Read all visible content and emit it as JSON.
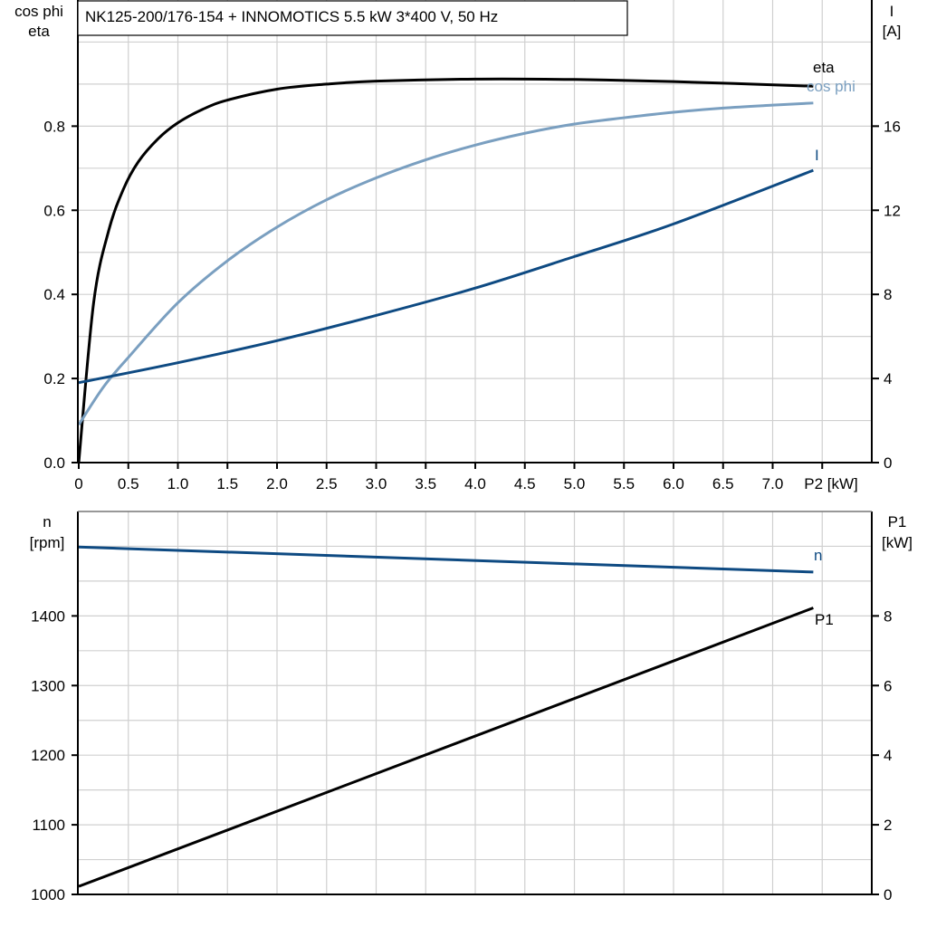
{
  "title": "NK125-200/176-154 + INNOMOTICS   5.5 kW   3*400 V, 50 Hz",
  "colors": {
    "eta": "#000000",
    "cos_phi": "#7a9fc0",
    "I": "#0e4a82",
    "n": "#0e4a82",
    "P1": "#000000",
    "grid": "#d0d0d0"
  },
  "chart_data": [
    {
      "type": "line",
      "xlabel": "P2 [kW]",
      "ylabel_left": [
        "cos phi",
        "eta"
      ],
      "ylabel_right": [
        "I",
        "[A]"
      ],
      "xlim": [
        0,
        8.0
      ],
      "ylim_left": [
        0,
        1.1
      ],
      "ylim_right": [
        0,
        22
      ],
      "x_ticks": [
        "0",
        "0.5",
        "1.0",
        "1.5",
        "2.0",
        "2.5",
        "3.0",
        "3.5",
        "4.0",
        "4.5",
        "5.0",
        "5.5",
        "6.0",
        "6.5",
        "7.0"
      ],
      "y_ticks_left": [
        "0.0",
        "0.2",
        "0.4",
        "0.6",
        "0.8"
      ],
      "y_ticks_right": [
        "0",
        "4",
        "8",
        "12",
        "16"
      ],
      "grid": true,
      "series": [
        {
          "name": "eta",
          "axis": "left",
          "x": [
            0,
            0.15,
            0.3,
            0.45,
            0.6,
            0.8,
            1.0,
            1.25,
            1.5,
            2.0,
            2.5,
            3.0,
            4.0,
            5.0,
            6.0,
            7.41
          ],
          "y": [
            0,
            0.38,
            0.55,
            0.65,
            0.715,
            0.77,
            0.808,
            0.84,
            0.862,
            0.888,
            0.9,
            0.907,
            0.912,
            0.911,
            0.906,
            0.895
          ]
        },
        {
          "name": "cos phi",
          "axis": "left",
          "x": [
            0,
            0.25,
            0.5,
            1.0,
            1.5,
            2.0,
            2.5,
            3.0,
            3.5,
            4.0,
            4.5,
            5.0,
            5.5,
            6.0,
            6.5,
            7.0,
            7.41
          ],
          "y": [
            0.09,
            0.18,
            0.25,
            0.38,
            0.48,
            0.56,
            0.625,
            0.677,
            0.72,
            0.755,
            0.783,
            0.805,
            0.82,
            0.833,
            0.843,
            0.85,
            0.855
          ]
        },
        {
          "name": "I",
          "axis": "right",
          "x": [
            0,
            1,
            2,
            3,
            4,
            5,
            6,
            7.41
          ],
          "y": [
            3.8,
            4.75,
            5.8,
            7.0,
            8.3,
            9.8,
            11.35,
            13.9
          ]
        }
      ]
    },
    {
      "type": "line",
      "ylabel_left": [
        "n",
        "[rpm]"
      ],
      "ylabel_right": [
        "P1",
        "[kW]"
      ],
      "xlim": [
        0,
        8.0
      ],
      "ylim_left": [
        1000,
        1550
      ],
      "ylim_right": [
        0,
        11
      ],
      "y_ticks_left": [
        "1000",
        "1100",
        "1200",
        "1300",
        "1400"
      ],
      "y_ticks_right": [
        "0",
        "2",
        "4",
        "6",
        "8"
      ],
      "grid": true,
      "series": [
        {
          "name": "n",
          "axis": "left",
          "x": [
            0,
            7.41
          ],
          "y": [
            1499,
            1463
          ]
        },
        {
          "name": "P1",
          "axis": "right",
          "x": [
            0,
            7.41
          ],
          "y": [
            0.23,
            8.23
          ]
        }
      ]
    }
  ]
}
